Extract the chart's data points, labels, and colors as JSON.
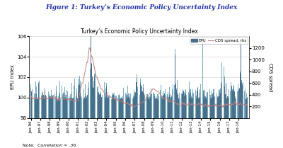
{
  "fig_title": "Figure 1: Turkey’s Economic Policy Uncertainty Index",
  "chart_title": "Turkey’s Economic Policy Uncertainty Index",
  "note": "Note:  Correlation = .36.",
  "ylabel_left": "EPU index",
  "ylabel_right": "CDS spread",
  "ylim_left": [
    98,
    106
  ],
  "ylim_right": [
    0,
    1400
  ],
  "yticks_left": [
    98,
    100,
    102,
    104,
    106
  ],
  "yticks_right": [
    200,
    400,
    600,
    800,
    1000,
    1200
  ],
  "bar_color_dark": "#4a6f8a",
  "bar_color_light": "#7aacc0",
  "line_color": "#c08080",
  "background_color": "#ffffff",
  "fig_background": "#ffffff",
  "xtick_labels": [
    "Jan-96",
    "Jan-97",
    "Jan-98",
    "Jan-99",
    "Jan-00",
    "Jan-01",
    "Jan-02",
    "Jan-03",
    "Jan-04",
    "Jan-05",
    "Jan-06",
    "Jan-07",
    "Jan-08",
    "Jan-09",
    "Jan-10",
    "Jan-11",
    "Jan-12",
    "Jan-13",
    "Jan-14",
    "Jan-15",
    "Jan-16",
    "Jan-17",
    "Jan-18"
  ]
}
